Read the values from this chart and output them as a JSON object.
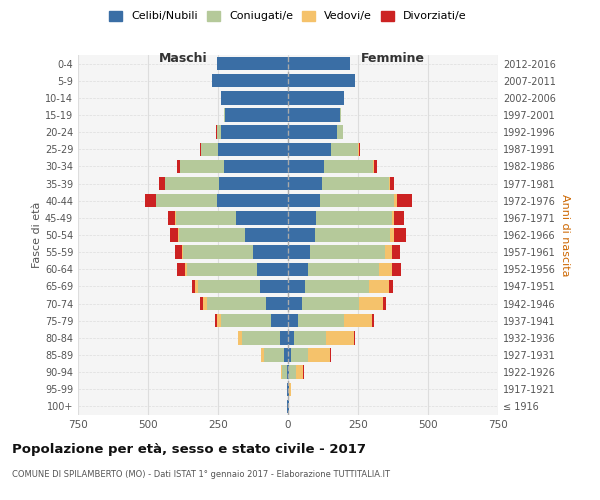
{
  "age_groups": [
    "100+",
    "95-99",
    "90-94",
    "85-89",
    "80-84",
    "75-79",
    "70-74",
    "65-69",
    "60-64",
    "55-59",
    "50-54",
    "45-49",
    "40-44",
    "35-39",
    "30-34",
    "25-29",
    "20-24",
    "15-19",
    "10-14",
    "5-9",
    "0-4"
  ],
  "birth_years": [
    "≤ 1916",
    "1917-1921",
    "1922-1926",
    "1927-1931",
    "1932-1936",
    "1937-1941",
    "1942-1946",
    "1947-1951",
    "1952-1956",
    "1957-1961",
    "1962-1966",
    "1967-1971",
    "1972-1976",
    "1977-1981",
    "1982-1986",
    "1987-1991",
    "1992-1996",
    "1997-2001",
    "2002-2006",
    "2007-2011",
    "2012-2016"
  ],
  "male": {
    "celibi": [
      2,
      2,
      5,
      15,
      30,
      60,
      80,
      100,
      110,
      125,
      155,
      185,
      255,
      245,
      230,
      250,
      240,
      225,
      240,
      270,
      255
    ],
    "coniugati": [
      1,
      2,
      15,
      70,
      135,
      180,
      210,
      220,
      250,
      250,
      235,
      215,
      215,
      195,
      155,
      60,
      15,
      5,
      0,
      0,
      0
    ],
    "vedovi": [
      0,
      1,
      5,
      10,
      12,
      15,
      15,
      12,
      8,
      5,
      3,
      2,
      2,
      1,
      1,
      1,
      0,
      0,
      0,
      0,
      0
    ],
    "divorziati": [
      0,
      0,
      0,
      2,
      3,
      5,
      8,
      10,
      30,
      25,
      30,
      25,
      40,
      20,
      10,
      5,
      2,
      0,
      0,
      0,
      0
    ]
  },
  "female": {
    "nubili": [
      2,
      2,
      5,
      10,
      20,
      35,
      50,
      60,
      70,
      80,
      95,
      100,
      115,
      120,
      130,
      155,
      175,
      185,
      200,
      240,
      220
    ],
    "coniugate": [
      1,
      3,
      25,
      60,
      115,
      165,
      205,
      230,
      255,
      265,
      270,
      270,
      265,
      240,
      175,
      95,
      20,
      5,
      0,
      0,
      0
    ],
    "vedove": [
      1,
      5,
      25,
      80,
      100,
      100,
      85,
      70,
      45,
      25,
      15,
      10,
      8,
      5,
      3,
      2,
      1,
      0,
      0,
      0,
      0
    ],
    "divorziate": [
      0,
      0,
      1,
      2,
      5,
      8,
      10,
      15,
      35,
      30,
      40,
      35,
      55,
      15,
      10,
      5,
      2,
      0,
      0,
      0,
      0
    ]
  },
  "colors": {
    "celibi": "#3a6ea5",
    "coniugati": "#b5c99a",
    "vedovi": "#f5c26b",
    "divorziati": "#cc2222"
  },
  "xlim": 750,
  "title": "Popolazione per età, sesso e stato civile - 2017",
  "subtitle": "COMUNE DI SPILAMBERTO (MO) - Dati ISTAT 1° gennaio 2017 - Elaborazione TUTTITALIA.IT",
  "ylabel_left": "Fasce di età",
  "ylabel_right": "Anni di nascita",
  "xlabel_maschi": "Maschi",
  "xlabel_femmine": "Femmine",
  "bg_color": "#ffffff",
  "plot_bg": "#f5f5f5",
  "grid_color": "#dddddd"
}
